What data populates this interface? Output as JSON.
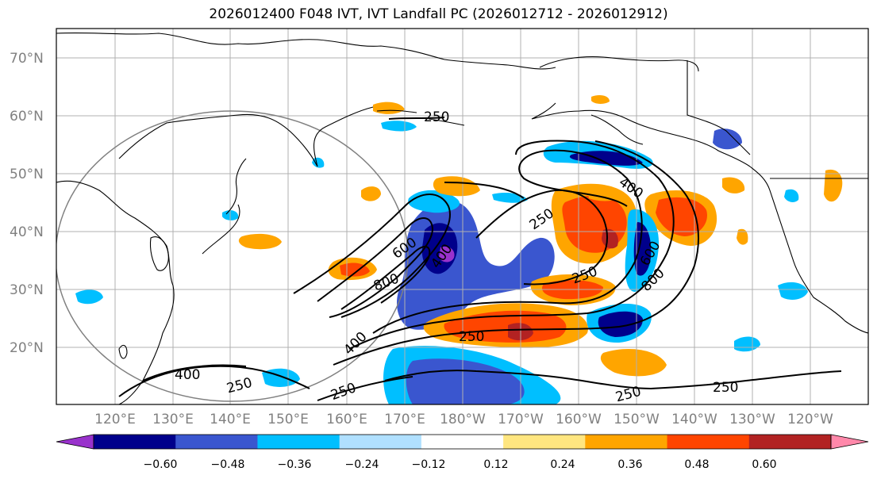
{
  "title": "2026012400 F048 IVT, IVT Landfall PC (2026012712 - 2026012912)",
  "lat_labels": [
    "70°N",
    "60°N",
    "50°N",
    "40°N",
    "30°N",
    "20°N"
  ],
  "lon_labels": [
    "120°E",
    "130°E",
    "140°E",
    "150°E",
    "160°E",
    "170°E",
    "180°W",
    "170°W",
    "160°W",
    "150°W",
    "140°W",
    "130°W",
    "120°W"
  ],
  "colorbar": {
    "colors": [
      "#9932cc",
      "#00008b",
      "#3a56cf",
      "#00bfff",
      "#b0e0ff",
      "#ffffff",
      "#ffe680",
      "#ffa500",
      "#ff4500",
      "#b22222",
      "#ff88aa"
    ],
    "tick_labels": [
      "−0.60",
      "−0.48",
      "−0.36",
      "−0.24",
      "−0.12",
      "0.12",
      "0.24",
      "0.36",
      "0.48",
      "0.60"
    ]
  },
  "contour_labels": [
    "250",
    "400",
    "600",
    "800",
    "400",
    "800",
    "250",
    "250",
    "400",
    "600",
    "800",
    "250",
    "400",
    "250",
    "250",
    "250",
    "250",
    "400",
    "250"
  ]
}
